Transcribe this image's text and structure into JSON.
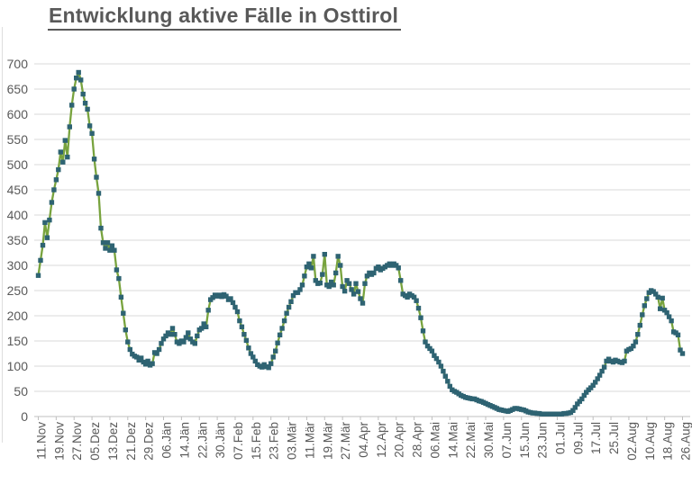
{
  "chart_data": {
    "type": "line",
    "title": "Entwicklung aktive Fälle in Osttirol",
    "series_name": "aktive Fälle",
    "legend": "none",
    "grid": "horizontal",
    "ylim": [
      0,
      700
    ],
    "y_ticks": [
      0,
      50,
      100,
      150,
      200,
      250,
      300,
      350,
      400,
      450,
      500,
      550,
      600,
      650,
      700
    ],
    "x_tick_interval_days": 8,
    "x_tick_labels": [
      "11.Nov",
      "19.Nov",
      "27.Nov",
      "05.Dez",
      "13.Dez",
      "21.Dez",
      "29.Dez",
      "06.Jän",
      "14.Jän",
      "22.Jän",
      "30.Jän",
      "07.Feb",
      "15.Feb",
      "23.Feb",
      "03.Mär",
      "11.Mär",
      "19.Mär",
      "27.Mär",
      "04.Apr",
      "12.Apr",
      "20.Apr",
      "28.Apr",
      "06.Mai",
      "14.Mai",
      "22.Mai",
      "30.Mai",
      "07.Jun",
      "15.Jun",
      "23.Jun",
      "01.Jul",
      "09.Jul",
      "17.Jul",
      "25.Jul",
      "02.Aug",
      "10.Aug",
      "18.Aug",
      "26.Aug"
    ],
    "x_start_date": "11.Nov",
    "x_end_date": "26.Aug",
    "marker_shape": "square",
    "line_color": "#78A33E",
    "marker_color": "#2E6372",
    "gridline_color": "#D9D9D9",
    "axis_line_color": "#BFBFBF",
    "axis_label_color": "#595959",
    "title_color": "#595959",
    "values": [
      280,
      310,
      340,
      385,
      355,
      390,
      425,
      450,
      470,
      490,
      525,
      505,
      548,
      515,
      575,
      618,
      650,
      672,
      683,
      668,
      640,
      622,
      610,
      577,
      562,
      511,
      475,
      443,
      374,
      345,
      334,
      345,
      330,
      339,
      330,
      291,
      274,
      237,
      205,
      172,
      148,
      133,
      124,
      120,
      118,
      112,
      116,
      108,
      104,
      110,
      102,
      105,
      127,
      125,
      133,
      145,
      154,
      160,
      166,
      163,
      175,
      163,
      148,
      145,
      150,
      148,
      157,
      166,
      154,
      148,
      145,
      160,
      172,
      175,
      184,
      178,
      211,
      232,
      236,
      241,
      239,
      241,
      238,
      242,
      239,
      232,
      234,
      226,
      217,
      208,
      190,
      178,
      163,
      151,
      136,
      125,
      118,
      110,
      103,
      100,
      98,
      103,
      99,
      97,
      105,
      118,
      130,
      146,
      162,
      175,
      190,
      205,
      217,
      228,
      240,
      246,
      246,
      252,
      261,
      279,
      297,
      303,
      295,
      318,
      270,
      264,
      265,
      282,
      322,
      261,
      258,
      267,
      261,
      285,
      318,
      300,
      258,
      249,
      270,
      264,
      252,
      243,
      264,
      248,
      234,
      225,
      264,
      279,
      285,
      282,
      285,
      294,
      297,
      291,
      294,
      297,
      300,
      303,
      300,
      303,
      300,
      295,
      270,
      243,
      240,
      237,
      243,
      240,
      237,
      230,
      215,
      196,
      170,
      148,
      140,
      135,
      130,
      121,
      115,
      108,
      100,
      90,
      80,
      70,
      60,
      53,
      50,
      48,
      45,
      42,
      40,
      38,
      37,
      36,
      35,
      35,
      33,
      31,
      30,
      28,
      26,
      24,
      22,
      20,
      18,
      16,
      14,
      13,
      12,
      11,
      10,
      12,
      14,
      16,
      16,
      15,
      14,
      13,
      11,
      9,
      8,
      7,
      7,
      6,
      6,
      5,
      5,
      5,
      5,
      5,
      5,
      5,
      5,
      5,
      5,
      6,
      6,
      7,
      8,
      12,
      18,
      25,
      30,
      35,
      42,
      48,
      53,
      57,
      62,
      68,
      75,
      82,
      90,
      98,
      110,
      114,
      110,
      108,
      112,
      110,
      108,
      107,
      110,
      130,
      133,
      135,
      140,
      148,
      163,
      181,
      202,
      220,
      234,
      246,
      250,
      248,
      243,
      237,
      214,
      235,
      211,
      206,
      198,
      190,
      168,
      166,
      162,
      132,
      125
    ]
  }
}
